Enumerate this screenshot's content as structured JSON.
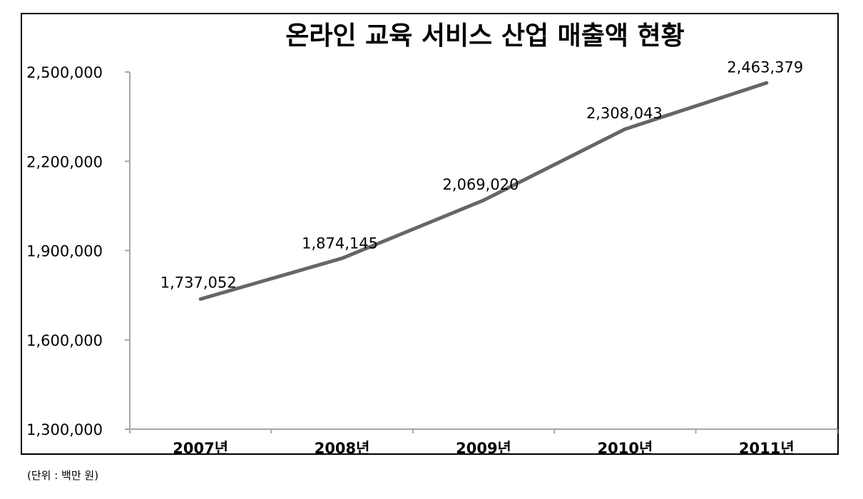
{
  "chart_data": {
    "type": "line",
    "title": "온라인 교육 서비스 산업 매출액 현황",
    "categories": [
      "2007년",
      "2008년",
      "2009년",
      "2010년",
      "2011년"
    ],
    "series": [
      {
        "values": [
          1737052,
          1874145,
          2069020,
          2308043,
          2463379
        ],
        "value_labels": [
          "1,737,052",
          "1,874,145",
          "2,069,020",
          "2,308,043",
          "2,463,379"
        ]
      }
    ],
    "ylim": [
      1300000,
      2500000
    ],
    "yticks": [
      1300000,
      1600000,
      1900000,
      2200000,
      2500000
    ],
    "ytick_labels": [
      "1,300,000",
      "1,600,000",
      "1,900,000",
      "2,200,000",
      "2,500,000"
    ],
    "xlabel": "",
    "ylabel": "",
    "grid": false,
    "legend": "none",
    "line_color": "#666666",
    "axis_color": "#a6a6a6"
  },
  "unit_note": "(단위 : 백만 원)"
}
